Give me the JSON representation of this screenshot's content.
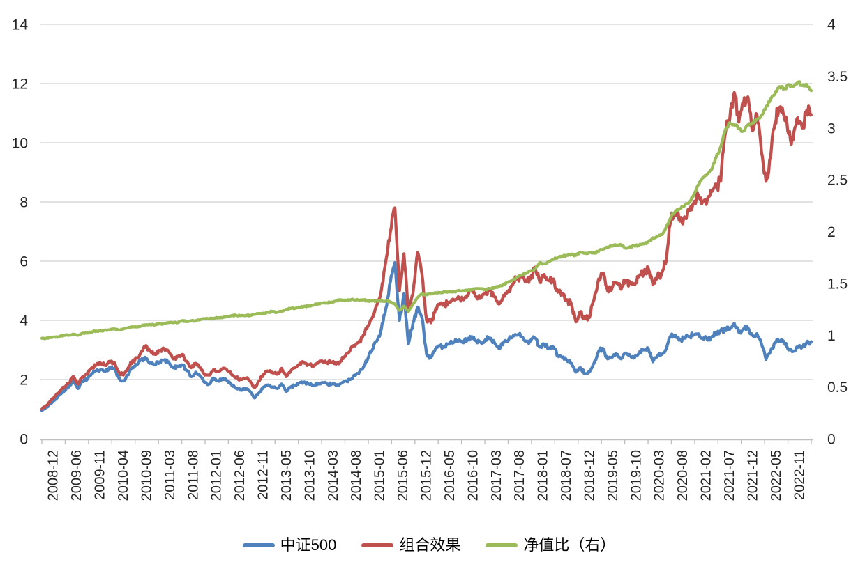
{
  "chart_data": {
    "type": "line",
    "title": "",
    "xlabel": "",
    "ylabel_left": "",
    "ylabel_right": "",
    "grid": "horizontal",
    "legend_position": "bottom",
    "left_axis": {
      "min": 0,
      "max": 14,
      "ticks": [
        0,
        2,
        4,
        6,
        8,
        10,
        12,
        14
      ]
    },
    "right_axis": {
      "min": 0,
      "max": 4,
      "ticks": [
        0,
        0.5,
        1,
        1.5,
        2,
        2.5,
        3,
        3.5,
        4
      ]
    },
    "x_tick_labels": [
      "2008-12",
      "2009-06",
      "2009-11",
      "2010-04",
      "2010-09",
      "2011-03",
      "2011-08",
      "2012-01",
      "2012-06",
      "2012-11",
      "2013-05",
      "2013-10",
      "2014-03",
      "2014-08",
      "2015-01",
      "2015-06",
      "2015-12",
      "2016-05",
      "2016-10",
      "2017-03",
      "2017-08",
      "2018-01",
      "2018-07",
      "2018-12",
      "2019-05",
      "2019-10",
      "2020-03",
      "2020-08",
      "2021-02",
      "2021-07",
      "2021-12",
      "2022-05",
      "2022-11"
    ],
    "x_unit": "month (2008-12 to 2023-02, values sampled monthly from daily curve)",
    "series": [
      {
        "name": "中证500",
        "color": "#4F81BD",
        "axis": "left",
        "noise": 0.028,
        "values": [
          0.95,
          1.05,
          1.2,
          1.33,
          1.5,
          1.62,
          1.75,
          1.95,
          1.7,
          1.95,
          2.0,
          2.2,
          2.3,
          2.33,
          2.28,
          2.42,
          2.38,
          2.05,
          1.95,
          2.15,
          2.4,
          2.5,
          2.68,
          2.72,
          2.55,
          2.5,
          2.6,
          2.65,
          2.6,
          2.4,
          2.45,
          2.5,
          2.3,
          2.1,
          2.25,
          2.1,
          1.9,
          1.85,
          2.05,
          1.95,
          2.05,
          1.95,
          1.8,
          1.72,
          1.65,
          1.7,
          1.6,
          1.38,
          1.55,
          1.75,
          1.82,
          1.75,
          1.7,
          1.85,
          1.6,
          1.75,
          1.8,
          1.9,
          1.92,
          1.85,
          1.8,
          1.86,
          1.9,
          1.85,
          1.84,
          1.8,
          1.86,
          1.95,
          2.0,
          2.15,
          2.2,
          2.4,
          2.7,
          3.0,
          3.3,
          3.7,
          4.4,
          5.3,
          5.95,
          4.0,
          4.9,
          3.2,
          3.9,
          4.45,
          4.1,
          2.85,
          2.75,
          3.05,
          3.15,
          3.1,
          3.2,
          3.25,
          3.3,
          3.25,
          3.35,
          3.45,
          3.3,
          3.25,
          3.35,
          3.4,
          3.25,
          3.05,
          3.25,
          3.3,
          3.45,
          3.5,
          3.45,
          3.3,
          3.3,
          3.4,
          3.1,
          3.2,
          3.05,
          3.1,
          2.8,
          2.75,
          2.65,
          2.55,
          2.25,
          2.4,
          2.2,
          2.25,
          2.55,
          2.95,
          3.05,
          2.7,
          2.75,
          2.85,
          2.7,
          2.9,
          2.8,
          2.75,
          2.9,
          3.0,
          3.05,
          2.6,
          2.8,
          2.85,
          3.05,
          3.5,
          3.5,
          3.35,
          3.4,
          3.45,
          3.5,
          3.55,
          3.4,
          3.35,
          3.45,
          3.55,
          3.65,
          3.7,
          3.7,
          3.9,
          3.6,
          3.7,
          3.75,
          3.5,
          3.55,
          3.2,
          2.68,
          2.95,
          3.25,
          3.3,
          3.25,
          3.0,
          2.95,
          3.1,
          3.1,
          3.25,
          3.28
        ]
      },
      {
        "name": "组合效果",
        "color": "#C0504D",
        "axis": "left",
        "noise": 0.028,
        "values": [
          1.0,
          1.12,
          1.3,
          1.45,
          1.62,
          1.75,
          1.88,
          2.1,
          1.85,
          2.1,
          2.18,
          2.4,
          2.5,
          2.55,
          2.48,
          2.62,
          2.58,
          2.25,
          2.15,
          2.38,
          2.62,
          2.72,
          2.95,
          3.15,
          2.95,
          2.85,
          2.98,
          3.05,
          2.95,
          2.7,
          2.78,
          2.85,
          2.62,
          2.4,
          2.55,
          2.4,
          2.15,
          2.15,
          2.35,
          2.28,
          2.38,
          2.3,
          2.15,
          2.08,
          2.0,
          2.05,
          1.95,
          1.72,
          1.95,
          2.18,
          2.28,
          2.22,
          2.18,
          2.38,
          2.1,
          2.3,
          2.4,
          2.55,
          2.55,
          2.5,
          2.45,
          2.55,
          2.62,
          2.55,
          2.58,
          2.52,
          2.62,
          2.78,
          2.95,
          3.15,
          3.25,
          3.5,
          3.8,
          4.1,
          4.5,
          5.0,
          6.0,
          7.0,
          7.8,
          5.0,
          6.25,
          4.3,
          4.9,
          6.3,
          5.55,
          4.0,
          3.92,
          4.4,
          4.55,
          4.5,
          4.62,
          4.7,
          4.8,
          4.72,
          4.85,
          5.0,
          4.8,
          4.75,
          4.9,
          5.0,
          4.8,
          4.55,
          4.85,
          4.95,
          5.2,
          5.45,
          5.5,
          5.35,
          5.4,
          5.8,
          5.3,
          5.55,
          5.35,
          5.4,
          4.95,
          4.9,
          4.7,
          4.55,
          3.95,
          4.3,
          4.05,
          4.1,
          4.7,
          5.4,
          5.6,
          5.0,
          5.1,
          5.25,
          5.05,
          5.35,
          5.25,
          5.2,
          5.5,
          5.6,
          5.75,
          5.2,
          5.5,
          5.6,
          6.05,
          7.5,
          7.6,
          7.35,
          7.5,
          7.7,
          7.95,
          8.25,
          8.0,
          8.05,
          8.35,
          8.55,
          8.7,
          10.3,
          10.8,
          11.7,
          10.7,
          11.3,
          11.55,
          10.4,
          10.95,
          9.7,
          8.7,
          9.5,
          10.7,
          11.2,
          10.9,
          10.3,
          10.1,
          10.85,
          10.5,
          11.1,
          10.95
        ]
      },
      {
        "name": "净值比（右）",
        "color": "#9BBB59",
        "axis": "right",
        "noise": 0.006,
        "values": [
          0.97,
          0.97,
          0.98,
          0.98,
          0.99,
          1.0,
          1.0,
          1.01,
          1.0,
          1.02,
          1.02,
          1.03,
          1.04,
          1.04,
          1.05,
          1.05,
          1.06,
          1.05,
          1.06,
          1.07,
          1.08,
          1.08,
          1.09,
          1.1,
          1.1,
          1.1,
          1.11,
          1.11,
          1.12,
          1.12,
          1.12,
          1.14,
          1.13,
          1.14,
          1.14,
          1.15,
          1.16,
          1.16,
          1.16,
          1.17,
          1.17,
          1.18,
          1.19,
          1.19,
          1.19,
          1.19,
          1.19,
          1.2,
          1.21,
          1.21,
          1.22,
          1.23,
          1.22,
          1.23,
          1.25,
          1.26,
          1.26,
          1.27,
          1.28,
          1.28,
          1.29,
          1.3,
          1.31,
          1.31,
          1.32,
          1.33,
          1.34,
          1.34,
          1.34,
          1.34,
          1.34,
          1.34,
          1.33,
          1.33,
          1.33,
          1.33,
          1.33,
          1.32,
          1.3,
          1.24,
          1.28,
          1.23,
          1.3,
          1.36,
          1.4,
          1.39,
          1.4,
          1.41,
          1.41,
          1.42,
          1.42,
          1.42,
          1.43,
          1.43,
          1.43,
          1.44,
          1.45,
          1.45,
          1.44,
          1.45,
          1.46,
          1.47,
          1.49,
          1.51,
          1.53,
          1.56,
          1.58,
          1.6,
          1.62,
          1.64,
          1.7,
          1.69,
          1.71,
          1.73,
          1.75,
          1.76,
          1.77,
          1.78,
          1.77,
          1.8,
          1.79,
          1.8,
          1.79,
          1.81,
          1.83,
          1.85,
          1.86,
          1.87,
          1.87,
          1.84,
          1.85,
          1.86,
          1.87,
          1.88,
          1.9,
          1.94,
          1.95,
          1.97,
          2.05,
          2.14,
          2.2,
          2.22,
          2.25,
          2.28,
          2.35,
          2.45,
          2.52,
          2.55,
          2.6,
          2.72,
          2.82,
          2.98,
          3.05,
          3.03,
          3.0,
          2.97,
          3.03,
          3.05,
          3.08,
          3.12,
          3.2,
          3.28,
          3.33,
          3.4,
          3.38,
          3.42,
          3.4,
          3.44,
          3.41,
          3.42,
          3.36
        ]
      }
    ],
    "colors": {
      "grid": "#D9D9D9",
      "axis_line": "#BFBFBF",
      "tick_label": "#262626",
      "background": "#FFFFFF"
    }
  },
  "legend": {
    "items": [
      {
        "label": "中证500",
        "color": "#4F81BD"
      },
      {
        "label": "组合效果",
        "color": "#C0504D"
      },
      {
        "label": "净值比（右）",
        "color": "#9BBB59"
      }
    ]
  }
}
